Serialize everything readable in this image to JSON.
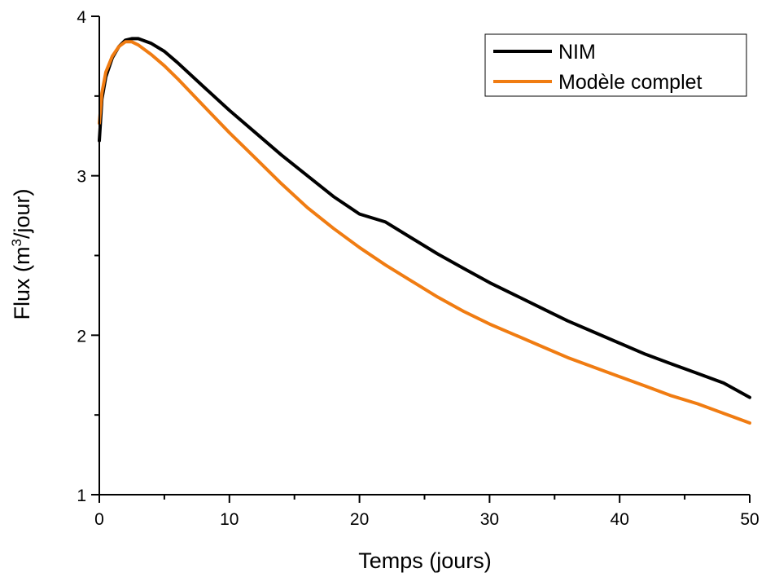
{
  "chart_data": {
    "type": "line",
    "xlabel": "Temps (jours)",
    "ylabel": {
      "prefix": "Flux (m",
      "sup": "3",
      "suffix": "/jour)"
    },
    "xlim": [
      0,
      50
    ],
    "ylim": [
      1,
      4
    ],
    "xticks": [
      0,
      10,
      20,
      30,
      40,
      50
    ],
    "xtick_labels": [
      "0",
      "10",
      "20",
      "30",
      "40",
      "50"
    ],
    "yticks": [
      1,
      2,
      3,
      4
    ],
    "ytick_labels": [
      "1",
      "2",
      "3",
      "4"
    ],
    "xminor": [
      5,
      15,
      25,
      35,
      45
    ],
    "yminor": [
      1.5,
      2.5,
      3.5
    ],
    "grid": false,
    "legend_position": "top-right",
    "series": [
      {
        "name": "NIM",
        "color": "#000000",
        "points": [
          [
            0,
            3.22
          ],
          [
            0.2,
            3.48
          ],
          [
            0.5,
            3.62
          ],
          [
            1,
            3.74
          ],
          [
            1.5,
            3.81
          ],
          [
            2,
            3.85
          ],
          [
            2.5,
            3.86
          ],
          [
            3,
            3.86
          ],
          [
            4,
            3.83
          ],
          [
            5,
            3.78
          ],
          [
            6,
            3.71
          ],
          [
            8,
            3.56
          ],
          [
            10,
            3.41
          ],
          [
            12,
            3.27
          ],
          [
            14,
            3.13
          ],
          [
            16,
            3.0
          ],
          [
            18,
            2.87
          ],
          [
            20,
            2.76
          ],
          [
            22,
            2.71
          ],
          [
            24,
            2.61
          ],
          [
            26,
            2.51
          ],
          [
            28,
            2.42
          ],
          [
            30,
            2.33
          ],
          [
            32,
            2.25
          ],
          [
            34,
            2.17
          ],
          [
            36,
            2.09
          ],
          [
            38,
            2.02
          ],
          [
            40,
            1.95
          ],
          [
            42,
            1.88
          ],
          [
            44,
            1.82
          ],
          [
            46,
            1.76
          ],
          [
            48,
            1.7
          ],
          [
            50,
            1.61
          ]
        ]
      },
      {
        "name": "Modèle complet",
        "color": "#f07c12",
        "points": [
          [
            0,
            3.33
          ],
          [
            0.2,
            3.52
          ],
          [
            0.5,
            3.65
          ],
          [
            1,
            3.75
          ],
          [
            1.5,
            3.81
          ],
          [
            2,
            3.84
          ],
          [
            2.5,
            3.84
          ],
          [
            3,
            3.82
          ],
          [
            4,
            3.76
          ],
          [
            5,
            3.69
          ],
          [
            6,
            3.61
          ],
          [
            8,
            3.44
          ],
          [
            10,
            3.27
          ],
          [
            12,
            3.11
          ],
          [
            14,
            2.95
          ],
          [
            16,
            2.8
          ],
          [
            18,
            2.67
          ],
          [
            20,
            2.55
          ],
          [
            22,
            2.44
          ],
          [
            24,
            2.34
          ],
          [
            26,
            2.24
          ],
          [
            28,
            2.15
          ],
          [
            30,
            2.07
          ],
          [
            32,
            2.0
          ],
          [
            34,
            1.93
          ],
          [
            36,
            1.86
          ],
          [
            38,
            1.8
          ],
          [
            40,
            1.74
          ],
          [
            42,
            1.68
          ],
          [
            44,
            1.62
          ],
          [
            46,
            1.57
          ],
          [
            48,
            1.51
          ],
          [
            50,
            1.45
          ]
        ]
      }
    ]
  }
}
